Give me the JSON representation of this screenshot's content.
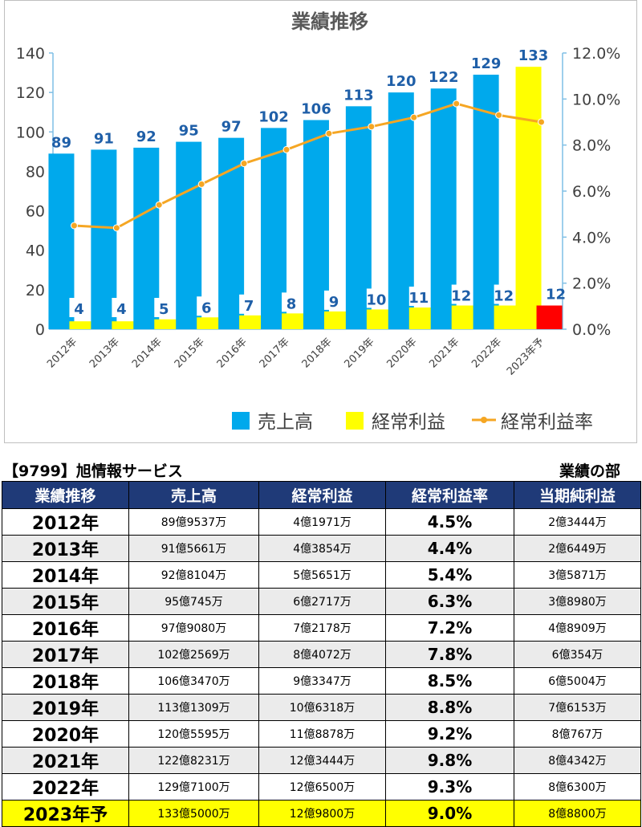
{
  "chart_data": {
    "type": "bar",
    "title": "業績推移",
    "categories": [
      "2012年",
      "2013年",
      "2014年",
      "2015年",
      "2016年",
      "2017年",
      "2018年",
      "2019年",
      "2020年",
      "2021年",
      "2022年",
      "2023年予"
    ],
    "series": [
      {
        "name": "売上高",
        "axis": "left",
        "type": "bar",
        "color": "#00a9ec",
        "values": [
          89,
          91,
          92,
          95,
          97,
          102,
          106,
          113,
          120,
          122,
          129,
          133
        ],
        "forecast_color": "#ffff00"
      },
      {
        "name": "経常利益",
        "axis": "left",
        "type": "bar",
        "color": "#ffff00",
        "values": [
          4,
          4,
          5,
          6,
          7,
          8,
          9,
          10,
          11,
          12,
          12,
          12
        ],
        "forecast_color": "#ff0000"
      },
      {
        "name": "経常利益率",
        "axis": "right",
        "type": "line",
        "color": "#f5a623",
        "values": [
          4.5,
          4.4,
          5.4,
          6.3,
          7.2,
          7.8,
          8.5,
          8.8,
          9.2,
          9.8,
          9.3,
          9.0
        ]
      }
    ],
    "y_left": {
      "min": 0,
      "max": 140,
      "ticks": [
        "0",
        "20",
        "40",
        "60",
        "80",
        "100",
        "120",
        "140"
      ]
    },
    "y_right": {
      "min": 0,
      "max": 12,
      "ticks": [
        "0.0%",
        "2.0%",
        "4.0%",
        "6.0%",
        "8.0%",
        "10.0%",
        "12.0%"
      ]
    },
    "grid": false,
    "legend": "bottom-right",
    "data_label_color": "#1f5fa8"
  },
  "header": {
    "company": "【9799】旭情報サービス",
    "section": "業績の部"
  },
  "table": {
    "columns": [
      "業績推移",
      "売上高",
      "経常利益",
      "経常利益率",
      "当期純利益"
    ],
    "rows": [
      [
        "2012年",
        "89億9537万",
        "4億1971万",
        "4.5%",
        "2億3444万"
      ],
      [
        "2013年",
        "91億5661万",
        "4億3854万",
        "4.4%",
        "2億6449万"
      ],
      [
        "2014年",
        "92億8104万",
        "5億5651万",
        "5.4%",
        "3億5871万"
      ],
      [
        "2015年",
        "95億745万",
        "6億2717万",
        "6.3%",
        "3億8980万"
      ],
      [
        "2016年",
        "97億9080万",
        "7億2178万",
        "7.2%",
        "4億8909万"
      ],
      [
        "2017年",
        "102億2569万",
        "8億4072万",
        "7.8%",
        "6億354万"
      ],
      [
        "2018年",
        "106億3470万",
        "9億3347万",
        "8.5%",
        "6億5004万"
      ],
      [
        "2019年",
        "113億1309万",
        "10億6318万",
        "8.8%",
        "7億6153万"
      ],
      [
        "2020年",
        "120億5595万",
        "11億8878万",
        "9.2%",
        "8億767万"
      ],
      [
        "2021年",
        "122億8231万",
        "12億3444万",
        "9.8%",
        "8億4342万"
      ],
      [
        "2022年",
        "129億7100万",
        "12億6500万",
        "9.3%",
        "8億6300万"
      ],
      [
        "2023年予",
        "133億5000万",
        "12億9800万",
        "9.0%",
        "8億8800万"
      ]
    ],
    "highlight_color": "#ffff00",
    "header_color": "#1f3a78"
  }
}
